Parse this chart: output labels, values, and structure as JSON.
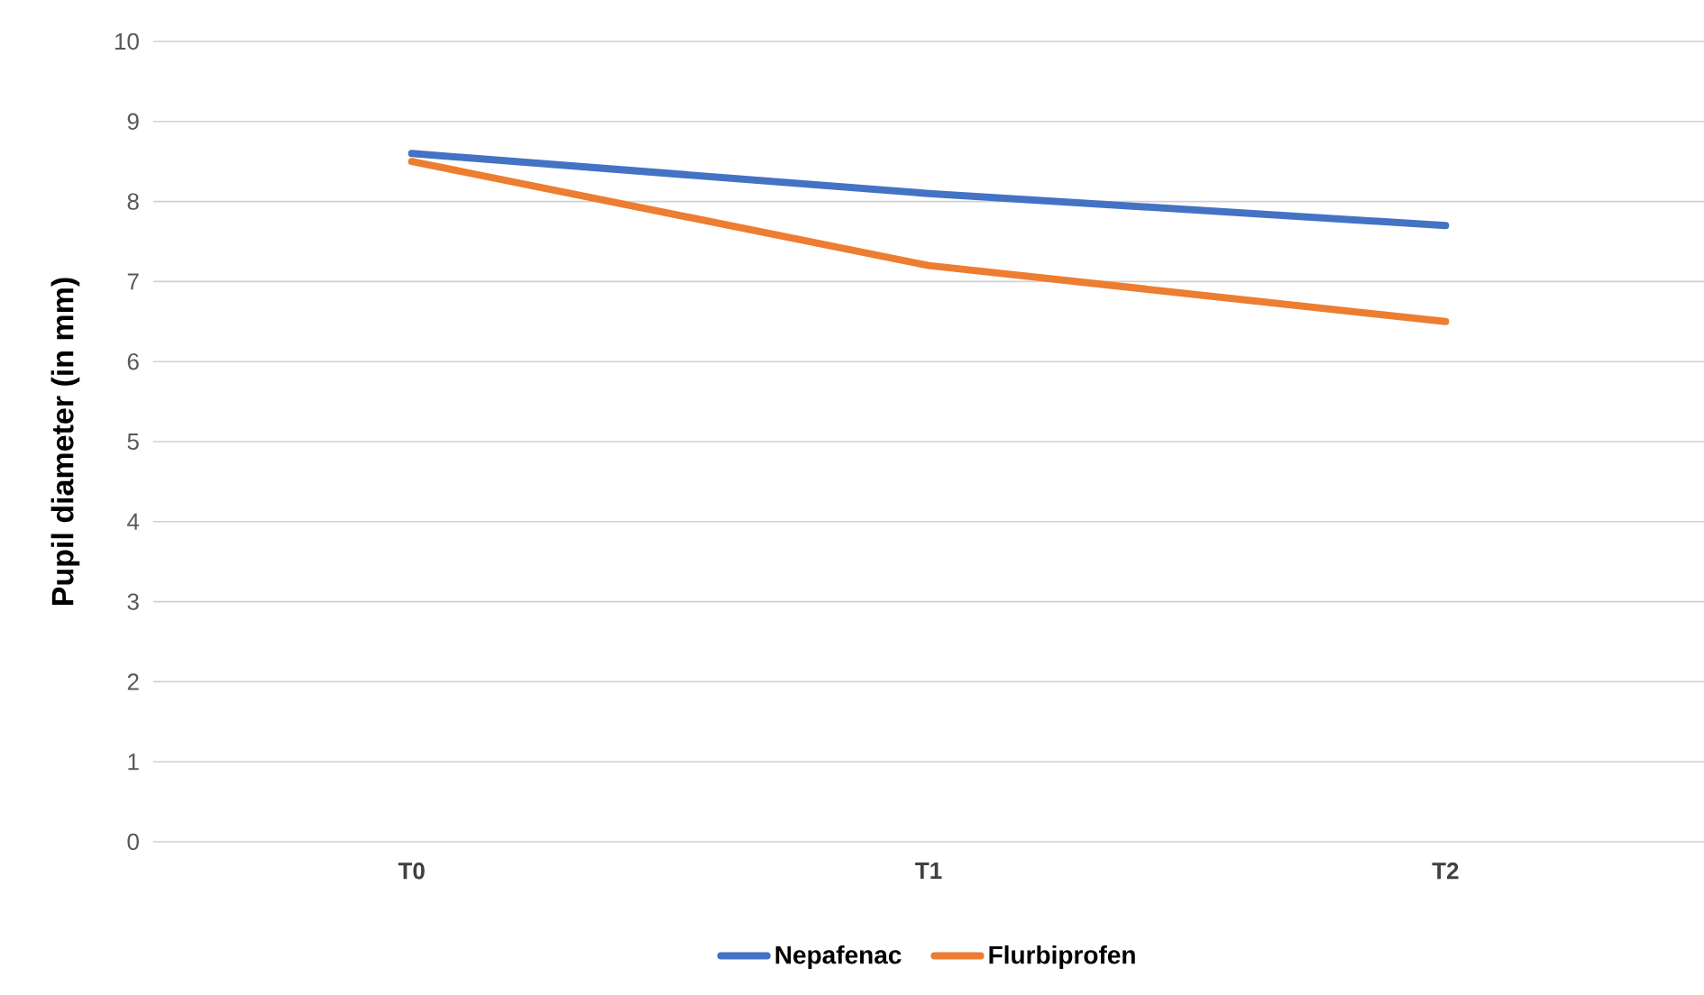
{
  "chart_data": {
    "type": "line",
    "ylabel": "Pupil diameter (in mm)",
    "categories": [
      "T0",
      "T1",
      "T2"
    ],
    "series": [
      {
        "name": "Nepafenac",
        "color": "#4472c4",
        "values": [
          8.6,
          8.1,
          7.7
        ]
      },
      {
        "name": "Flurbiprofen",
        "color": "#ed7d31",
        "values": [
          8.5,
          7.2,
          6.5
        ]
      }
    ],
    "ylim": [
      0,
      10
    ],
    "yticks": [
      0,
      1,
      2,
      3,
      4,
      5,
      6,
      7,
      8,
      9,
      10
    ],
    "grid": "y",
    "legend": "bottom",
    "marker": "none",
    "line_style": "solid"
  }
}
